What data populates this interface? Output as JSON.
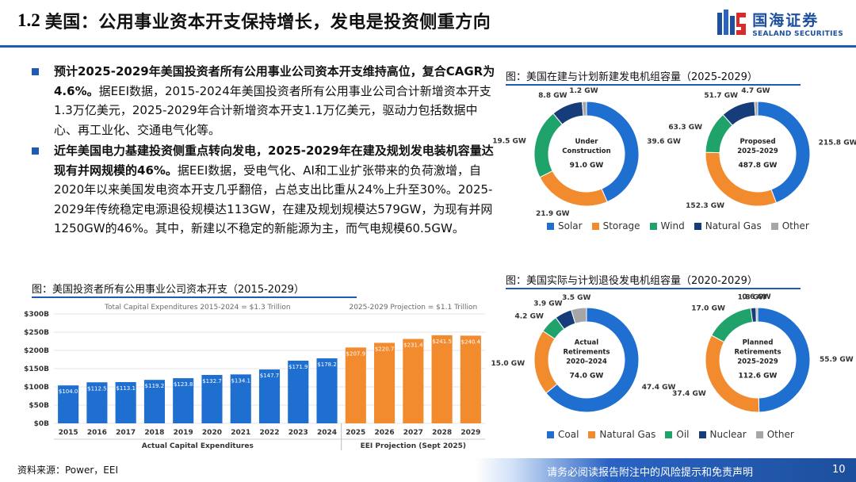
{
  "header": {
    "number": "1.2",
    "title": "美国：公用事业资本开支保持增长，发电是投资侧重方向",
    "logo_zh": "国海证券",
    "logo_en": "SEALAND SECURITIES"
  },
  "bullets": [
    {
      "bold": "预计2025-2029年美国投资者所有公用事业公司资本开支维持高位，复合CAGR为4.6%。",
      "text": "据EEI数据，2015-2024年美国投资者所有公用事业公司合计新增资本开支1.3万亿美元，2025-2029年合计新增资本开支1.1万亿美元，驱动力包括数据中心、再工业化、交通电气化等。"
    },
    {
      "bold": "近年美国电力基建投资侧重点转向发电，2025-2029年在建及规划发电装机容量达现有并网规模的46%。",
      "text": "据EEI数据，受电气化、AI和工业扩张带来的负荷激增，自2020年以来美国发电资本开支几乎翻倍，占总支出比重从24%上升至30%。2025-2029年传统稳定电源退役规模达113GW，在建及规划规模达579GW，为现有并网1250GW的46%。其中，新建以不稳定的新能源为主，而气电规模60.5GW。"
    }
  ],
  "captions": {
    "bar": "图：美国投资者所有公用事业公司资本开支（2015-2029）",
    "new_gen": "图：美国在建与计划新建发电机组容量（2025-2029）",
    "retire": "图：美国实际与计划退役发电机组容量（2020-2029）"
  },
  "chart_data": [
    {
      "type": "bar",
      "title": "美国投资者所有公用事业公司资本开支（2015-2029）",
      "subtitle_left": "Total Capital Expenditures 2015-2024 = $1.3 Trillion",
      "subtitle_right": "2025-2029 Projection = $1.1 Trillion",
      "categories": [
        "2015",
        "2016",
        "2017",
        "2018",
        "2019",
        "2020",
        "2021",
        "2022",
        "2023",
        "2024",
        "2025",
        "2026",
        "2027",
        "2028",
        "2029"
      ],
      "values": [
        104.0,
        112.5,
        113.1,
        119.2,
        123.8,
        132.7,
        134.1,
        147.7,
        171.9,
        178.2,
        207.9,
        220.7,
        231.4,
        241.5,
        240.4
      ],
      "labels": [
        "$104.0",
        "$112.5",
        "$113.1",
        "$119.2",
        "$123.8",
        "$132.7",
        "$134.1",
        "$147.7",
        "$171.9",
        "$178.2",
        "$207.9",
        "$220.7",
        "$231.4",
        "$241.5",
        "$240.4"
      ],
      "yticks": [
        "$0B",
        "$50B",
        "$100B",
        "$150B",
        "$200B",
        "$250B",
        "$300B"
      ],
      "ylim": [
        0,
        300
      ],
      "actual_count": 10,
      "xlabel_actual": "Actual Capital Expenditures",
      "xlabel_projection": "EEI Projection (Sept 2025)",
      "colors": {
        "actual": "#1f6fd1",
        "projection": "#f28a2e"
      }
    },
    {
      "type": "pie",
      "title": "美国在建与计划新建发电机组容量（2025-2029）",
      "legend": [
        "Solar",
        "Storage",
        "Wind",
        "Natural Gas",
        "Other"
      ],
      "colors": [
        "#1f6fd1",
        "#f28a2e",
        "#1fa36b",
        "#163c7a",
        "#a6a6a6"
      ],
      "donuts": [
        {
          "center": [
            "Under",
            "Construction",
            "91.0 GW"
          ],
          "values": [
            39.6,
            21.9,
            19.5,
            8.8,
            1.2
          ],
          "labels": [
            "39.6 GW",
            "21.9 GW",
            "19.5 GW",
            "8.8 GW",
            "1.2 GW"
          ]
        },
        {
          "center": [
            "Proposed",
            "2025–2029",
            "487.8 GW"
          ],
          "values": [
            215.8,
            152.3,
            63.3,
            51.7,
            4.7
          ],
          "labels": [
            "215.8 GW",
            "152.3 GW",
            "63.3 GW",
            "51.7 GW",
            "4.7 GW"
          ]
        }
      ]
    },
    {
      "type": "pie",
      "title": "美国实际与计划退役发电机组容量（2020-2029）",
      "legend": [
        "Coal",
        "Natural Gas",
        "Oil",
        "Nuclear",
        "Other"
      ],
      "colors": [
        "#1f6fd1",
        "#f28a2e",
        "#1fa36b",
        "#163c7a",
        "#a6a6a6"
      ],
      "donuts": [
        {
          "center": [
            "Actual",
            "Retirements",
            "2020–2024",
            "74.0 GW"
          ],
          "values": [
            47.4,
            15.0,
            4.2,
            3.9,
            3.5
          ],
          "labels": [
            "47.4 GW",
            "15.0 GW",
            "4.2 GW",
            "3.9 GW",
            "3.5 GW"
          ]
        },
        {
          "center": [
            "Planned",
            "Retirements",
            "2025–2029",
            "112.6 GW"
          ],
          "values": [
            55.9,
            37.4,
            17.0,
            1.8,
            0.6
          ],
          "labels": [
            "55.9 GW",
            "37.4 GW",
            "17.0 GW",
            "1.8 GW",
            "0.6 GW"
          ]
        }
      ]
    }
  ],
  "footer": {
    "source": "资料来源：Power，EEI",
    "disclaimer": "请务必阅读报告附注中的风险提示和免责声明",
    "page": "10"
  }
}
